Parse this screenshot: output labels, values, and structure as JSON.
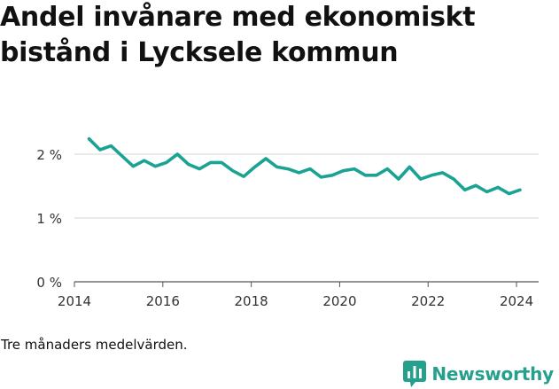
{
  "chart_data": {
    "type": "line",
    "title": "Andel invånare med ekonomiskt bistånd i Lycksele kommun",
    "note": "Tre månaders medelvärden.",
    "xlim": [
      2014,
      2024.5
    ],
    "ylim": [
      0,
      2.0
    ],
    "xticks": [
      2014,
      2016,
      2018,
      2020,
      2022,
      2024
    ],
    "xtick_labels": [
      "2014",
      "2016",
      "2018",
      "2020",
      "2022",
      "2024"
    ],
    "yticks": [
      0,
      1,
      2
    ],
    "ytick_labels": [
      "0 %",
      "1 %",
      "2 %"
    ],
    "grid": "horizontal",
    "series": [
      {
        "color": "#1aa393",
        "x": [
          2014.33,
          2014.58,
          2014.83,
          2015.08,
          2015.33,
          2015.58,
          2015.83,
          2016.08,
          2016.33,
          2016.58,
          2016.83,
          2017.08,
          2017.33,
          2017.58,
          2017.83,
          2018.08,
          2018.33,
          2018.58,
          2018.83,
          2019.08,
          2019.33,
          2019.58,
          2019.83,
          2020.08,
          2020.33,
          2020.58,
          2020.83,
          2021.08,
          2021.33,
          2021.58,
          2021.83,
          2022.08,
          2022.33,
          2022.58,
          2022.83,
          2023.08,
          2023.33,
          2023.58,
          2023.83,
          2024.08
        ],
        "values": [
          2.24,
          2.07,
          2.13,
          1.97,
          1.81,
          1.9,
          1.81,
          1.87,
          2.0,
          1.84,
          1.77,
          1.87,
          1.87,
          1.74,
          1.65,
          1.8,
          1.93,
          1.8,
          1.77,
          1.71,
          1.77,
          1.64,
          1.67,
          1.74,
          1.77,
          1.67,
          1.67,
          1.77,
          1.61,
          1.8,
          1.61,
          1.67,
          1.71,
          1.61,
          1.44,
          1.51,
          1.41,
          1.48,
          1.38,
          1.44
        ]
      }
    ]
  },
  "footer": {
    "brand": "Newsworthy",
    "logo_icon": "bar-chart-logo-icon"
  }
}
